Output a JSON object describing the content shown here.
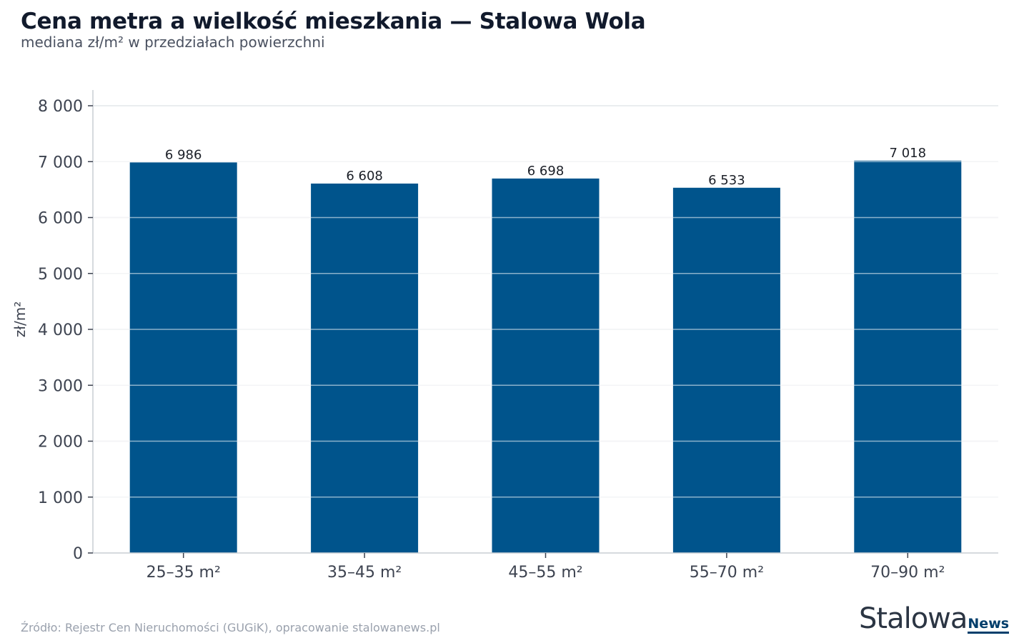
{
  "header": {
    "title": "Cena metra a wielkość mieszkania — Stalowa Wola",
    "subtitle": "mediana zł/m² w przedziałach powierzchni"
  },
  "footer": {
    "source": "Źródło: Rejestr Cen Nieruchomości (GUGiK), opracowanie stalowanews.pl",
    "logo_main": "Stalowa",
    "logo_accent": "News"
  },
  "colors": {
    "bar": "#00548c",
    "grid": "#e4e7ea",
    "axis": "#c9ced4",
    "tick_text": "#3d4350",
    "label_text": "#1b1f27"
  },
  "chart_data": {
    "type": "bar",
    "categories": [
      "25–35 m²",
      "35–45 m²",
      "45–55 m²",
      "55–70 m²",
      "70–90 m²"
    ],
    "values": [
      6986,
      6608,
      6698,
      6533,
      7018
    ],
    "value_labels": [
      "6 986",
      "6 608",
      "6 698",
      "6 533",
      "7 018"
    ],
    "ylabel": "zł/m²",
    "ylim": [
      0,
      8000
    ],
    "yticks": [
      0,
      1000,
      2000,
      3000,
      4000,
      5000,
      6000,
      7000,
      8000
    ],
    "ytick_labels": [
      "0",
      "1 000",
      "2 000",
      "3 000",
      "4 000",
      "5 000",
      "6 000",
      "7 000",
      "8 000"
    ],
    "grid": true,
    "legend": "none"
  }
}
